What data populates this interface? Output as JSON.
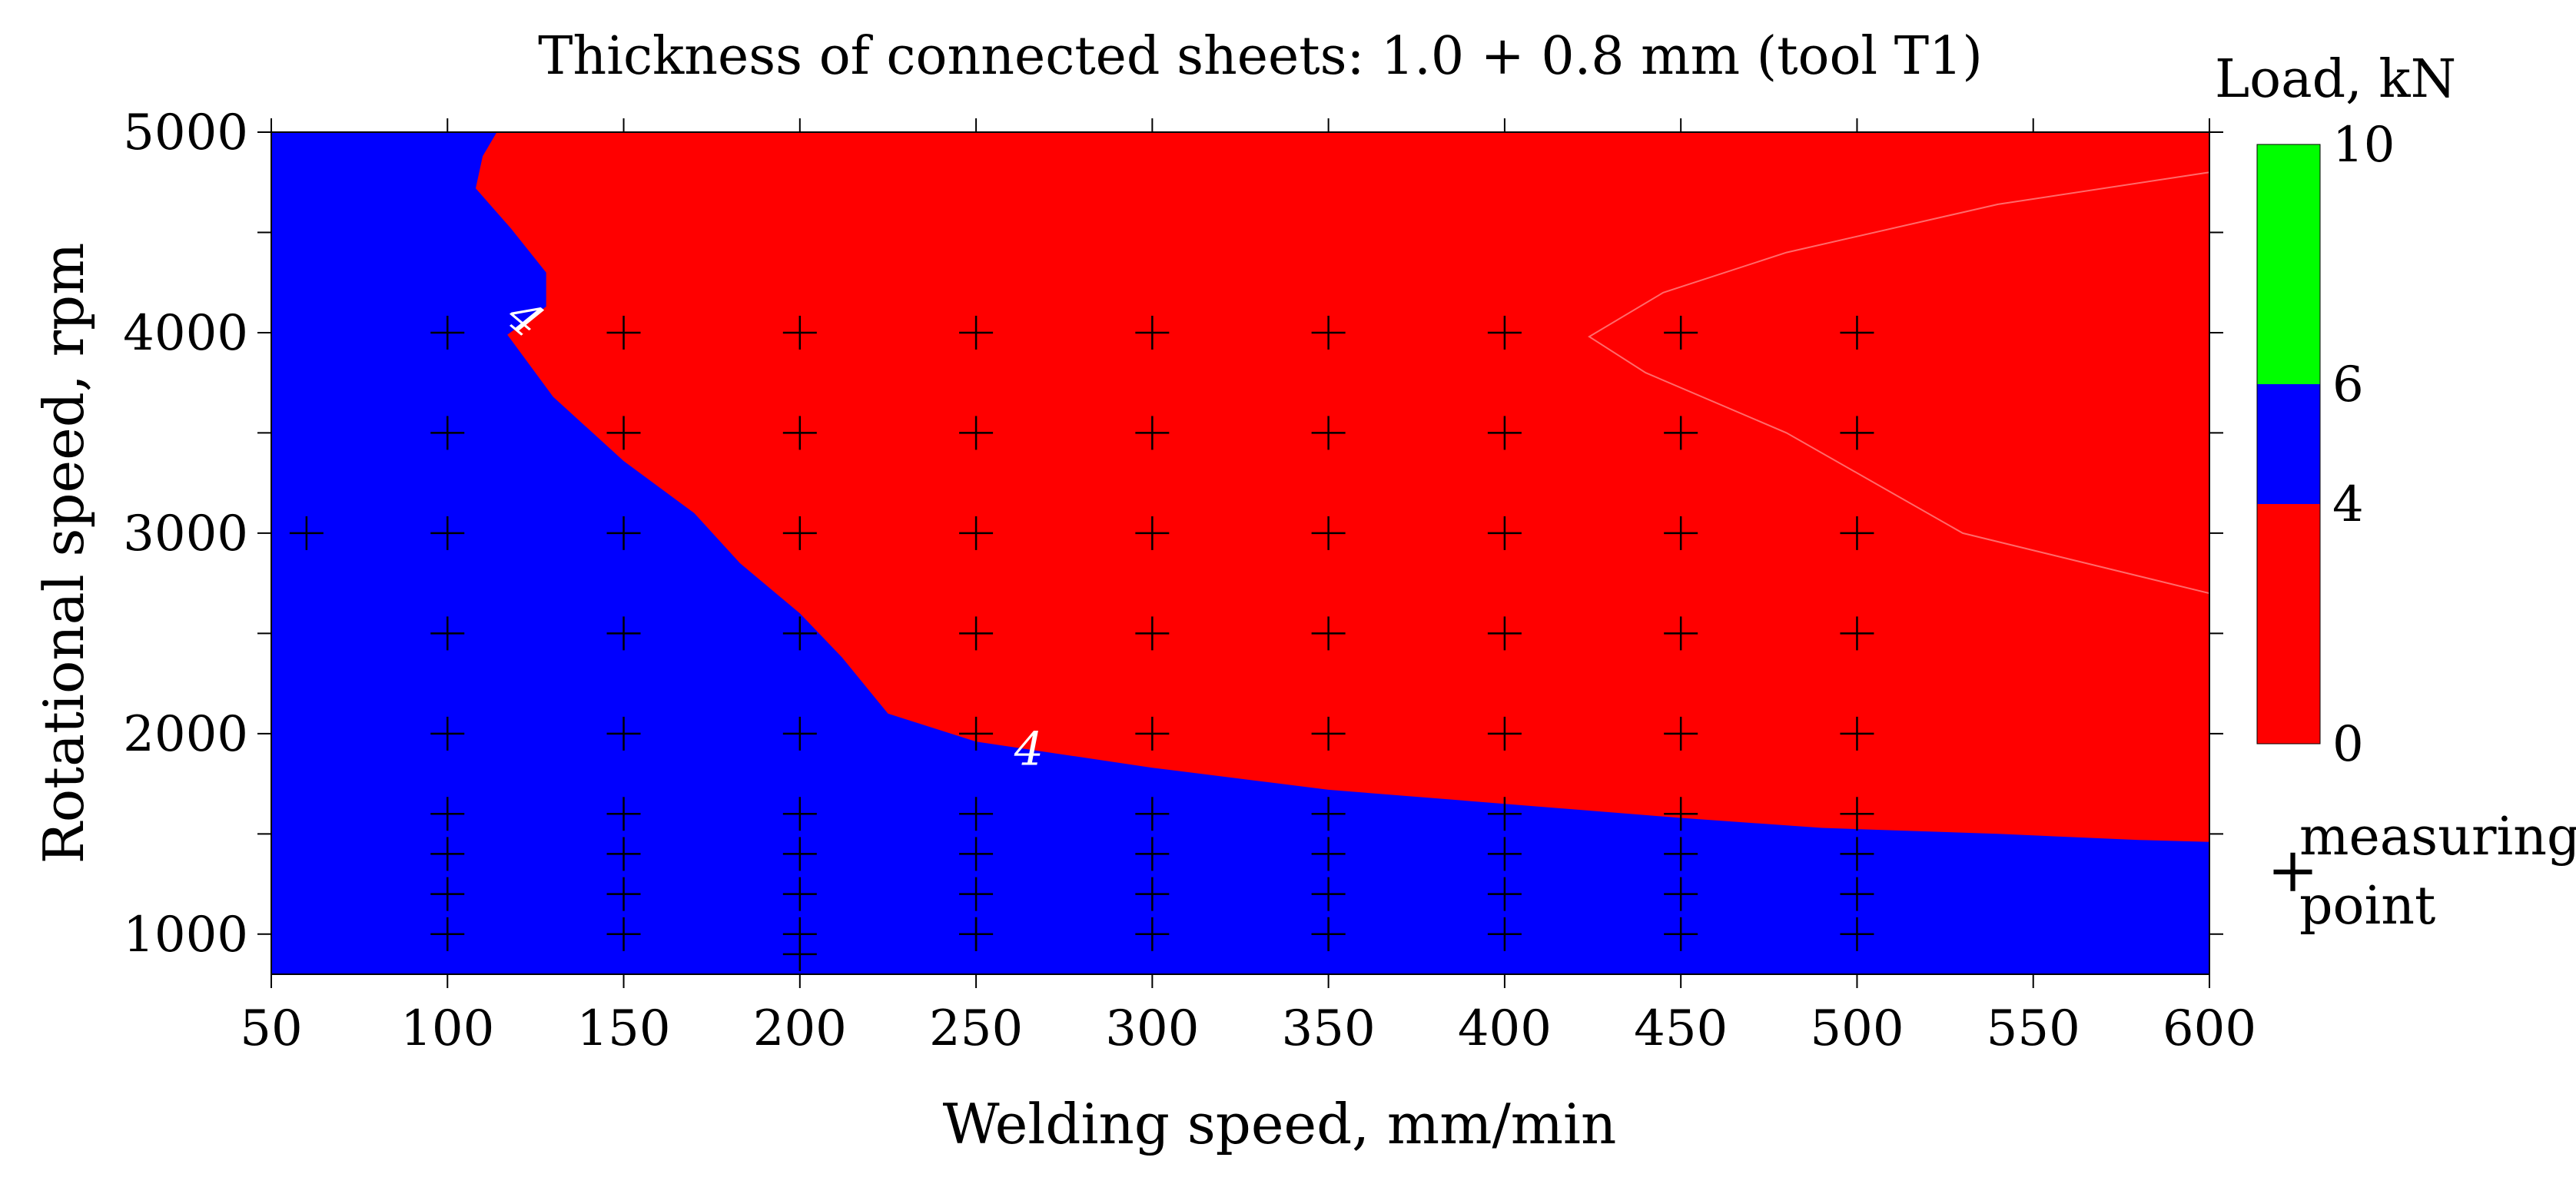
{
  "chart_data": {
    "type": "heatmap",
    "title": "Thickness of connected sheets: 1.0 + 0.8 mm (tool T1)",
    "xlabel": "Welding speed, mm/min",
    "ylabel": "Rotational speed, rpm",
    "xlim": [
      50,
      600
    ],
    "ylim": [
      800,
      5000
    ],
    "x_ticks": [
      "50",
      "100",
      "150",
      "200",
      "250",
      "300",
      "350",
      "400",
      "450",
      "500",
      "550",
      "600"
    ],
    "y_ticks": [
      "1000",
      "2000",
      "3000",
      "4000",
      "5000"
    ],
    "colorbar": {
      "title": "Load, kN",
      "levels": [
        {
          "from": 0,
          "to": 4,
          "color": "#ff0000"
        },
        {
          "from": 4,
          "to": 6,
          "color": "#0000ff"
        },
        {
          "from": 6,
          "to": 10,
          "color": "#00ff00"
        }
      ],
      "tick_labels": [
        "0",
        "4",
        "6",
        "10"
      ]
    },
    "contour_labels": [
      {
        "text": "4",
        "x": 122,
        "y": 4070
      },
      {
        "text": "4",
        "x": 265,
        "y": 1920
      }
    ],
    "boundary_4kN": [
      [
        600,
        1460
      ],
      [
        580,
        1470
      ],
      [
        540,
        1500
      ],
      [
        490,
        1530
      ],
      [
        450,
        1580
      ],
      [
        400,
        1650
      ],
      [
        350,
        1720
      ],
      [
        300,
        1830
      ],
      [
        250,
        1960
      ],
      [
        225,
        2100
      ],
      [
        212,
        2380
      ],
      [
        200,
        2600
      ],
      [
        183,
        2850
      ],
      [
        170,
        3100
      ],
      [
        150,
        3360
      ],
      [
        130,
        3680
      ],
      [
        117,
        3990
      ],
      [
        128,
        4130
      ],
      [
        128,
        4300
      ],
      [
        118,
        4520
      ],
      [
        108,
        4720
      ],
      [
        110,
        4880
      ],
      [
        114,
        5000
      ]
    ],
    "faint_contour": [
      [
        600,
        4800
      ],
      [
        540,
        4640
      ],
      [
        480,
        4400
      ],
      [
        445,
        4200
      ],
      [
        424,
        3980
      ],
      [
        440,
        3800
      ],
      [
        480,
        3500
      ],
      [
        530,
        3000
      ],
      [
        600,
        2700
      ]
    ],
    "measuring_points": {
      "x": [
        100,
        150,
        200,
        250,
        300,
        350,
        400,
        450,
        500
      ],
      "y": [
        1000,
        1200,
        1400,
        1600,
        2000,
        2500,
        3000,
        3500,
        4000
      ],
      "extra": [
        [
          60,
          3000
        ],
        [
          200,
          900
        ],
        [
          250,
          1000
        ],
        [
          350,
          1000
        ]
      ]
    },
    "legend": {
      "symbol": "+",
      "label_line1": "measuring",
      "label_line2": "point"
    }
  }
}
